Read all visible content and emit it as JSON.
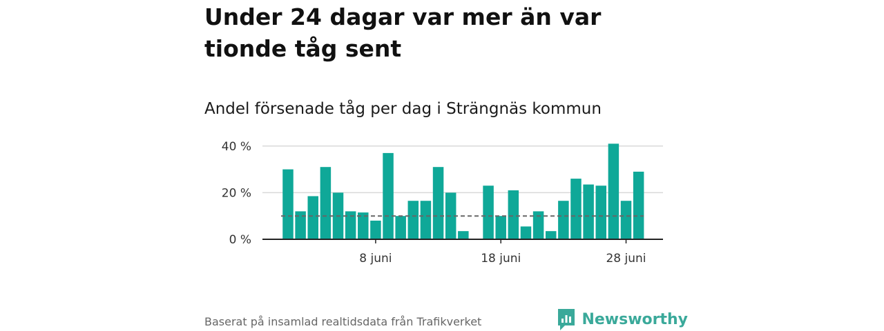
{
  "header": {
    "title": "Under 24 dagar var mer än var tionde tåg sent",
    "subtitle": "Andel försenade tåg per dag i Strängnäs kommun"
  },
  "footer": {
    "source": "Baserat på insamlad realtidsdata från Trafikverket",
    "brand": "Newsworthy"
  },
  "colors": {
    "bar": "#0fa898",
    "grid": "#d9d9d9",
    "axis": "#222222",
    "reference": "#666666",
    "brand": "#3aa99a"
  },
  "chart_data": {
    "type": "bar",
    "x": [
      "1 juni",
      "2 juni",
      "3 juni",
      "4 juni",
      "5 juni",
      "6 juni",
      "7 juni",
      "8 juni",
      "9 juni",
      "10 juni",
      "11 juni",
      "12 juni",
      "13 juni",
      "14 juni",
      "15 juni",
      "16 juni",
      "17 juni",
      "18 juni",
      "19 juni",
      "20 juni",
      "21 juni",
      "22 juni",
      "23 juni",
      "24 juni",
      "25 juni",
      "26 juni",
      "27 juni",
      "28 juni",
      "29 juni",
      "30 juni"
    ],
    "values": [
      30,
      12,
      18.5,
      31,
      20,
      12,
      11.5,
      8,
      37,
      10,
      16.5,
      16.5,
      31,
      20,
      3.5,
      0,
      23,
      10,
      21,
      5.5,
      12,
      3.5,
      16.5,
      26,
      23.5,
      23,
      41,
      16.5,
      29,
      null
    ],
    "y_ticks": [
      {
        "value": 0,
        "label": "0 %"
      },
      {
        "value": 20,
        "label": "20 %"
      },
      {
        "value": 40,
        "label": "40 %"
      }
    ],
    "x_ticks": [
      {
        "x": "8 juni",
        "label": "8 juni"
      },
      {
        "x": "18 juni",
        "label": "18 juni"
      },
      {
        "x": "28 juni",
        "label": "28 juni"
      }
    ],
    "reference_line": 10,
    "ylim": [
      0,
      42
    ],
    "grid": true,
    "xlabel": "",
    "ylabel": ""
  }
}
